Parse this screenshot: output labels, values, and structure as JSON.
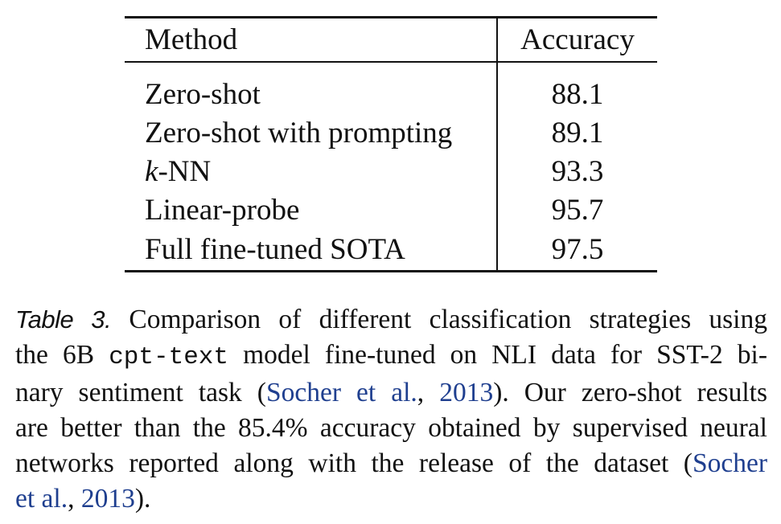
{
  "table": {
    "headers": {
      "method": "Method",
      "accuracy": "Accuracy"
    },
    "rows": [
      {
        "method_prefix": "",
        "method": "Zero-shot",
        "accuracy": "88.1"
      },
      {
        "method_prefix": "",
        "method": "Zero-shot with prompting",
        "accuracy": "89.1"
      },
      {
        "method_prefix": "k",
        "method": "-NN",
        "accuracy": "93.3"
      },
      {
        "method_prefix": "",
        "method": "Linear-probe",
        "accuracy": "95.7"
      },
      {
        "method_prefix": "",
        "method": "Full fine-tuned SOTA",
        "accuracy": "97.5"
      }
    ]
  },
  "caption": {
    "label": "Table 3.",
    "l1": " Comparison of different classification strategies using",
    "l2_a": "the 6B ",
    "l2_code": "cpt-text",
    "l2_b": " model fine-tuned on NLI data for SST-2 bi-",
    "l3_a": "nary sentiment task (",
    "l3_cite_author": "Socher et al.",
    "l3_comma": ", ",
    "l3_cite_year": "2013",
    "l3_b": ").  Our zero-shot results",
    "l4": "are better than the 85.4% accuracy obtained by supervised neural",
    "l5_a": "networks reported along with the release of the dataset (",
    "l5_cite": "Socher",
    "l6_cite_author": "et al.",
    "l6_comma": ", ",
    "l6_cite_year": "2013",
    "l6_b": ")."
  }
}
